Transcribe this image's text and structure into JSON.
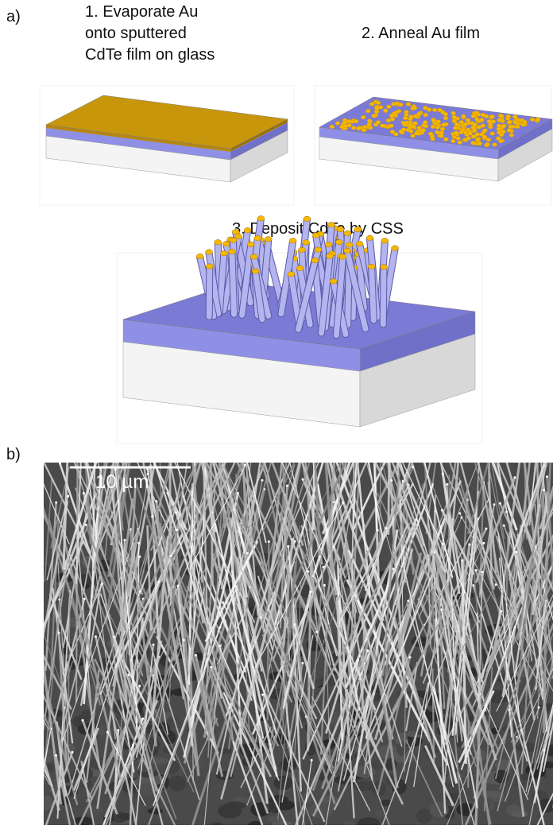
{
  "panel_a": {
    "label": "a)",
    "steps": [
      {
        "lines": [
          "1.  Evaporate Au",
          "onto sputtered",
          "CdTe film on glass"
        ]
      },
      {
        "lines": [
          "2.  Anneal Au film"
        ]
      },
      {
        "lines": [
          "3.  Deposit CdTe by CSS"
        ]
      }
    ]
  },
  "panel_b": {
    "label": "b)",
    "scale_bar": "10 µm"
  }
}
